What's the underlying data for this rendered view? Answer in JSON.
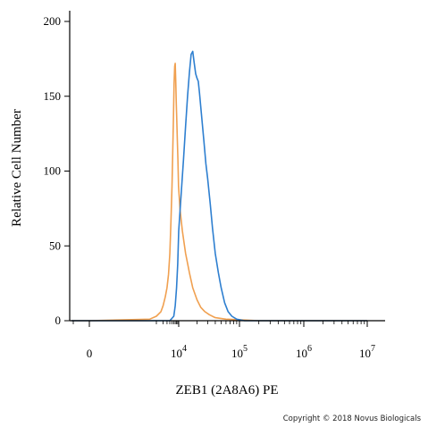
{
  "chart_data": {
    "type": "line",
    "title": "",
    "xlabel": "ZEB1 (2A8A6) PE",
    "ylabel": "Relative Cell Number",
    "xscale": "biexponential",
    "xlim": [
      -1000,
      10000000
    ],
    "ylim": [
      0,
      200
    ],
    "y_ticks": [
      {
        "value": 0,
        "label": "0"
      },
      {
        "value": 50,
        "label": "50"
      },
      {
        "value": 100,
        "label": "100"
      },
      {
        "value": 150,
        "label": "150"
      },
      {
        "value": 200,
        "label": "200"
      }
    ],
    "x_ticks": [
      {
        "value": 0,
        "base": "0",
        "exp": ""
      },
      {
        "value": 10000,
        "base": "10",
        "exp": "4"
      },
      {
        "value": 100000,
        "base": "10",
        "exp": "5"
      },
      {
        "value": 1000000,
        "base": "10",
        "exp": "6"
      },
      {
        "value": 10000000,
        "base": "10",
        "exp": "7"
      }
    ],
    "grid": false,
    "legend": "none",
    "series": [
      {
        "color": "#f0a050",
        "x": [
          -1000,
          0,
          500,
          1000,
          1600,
          2000,
          2500,
          3000,
          3500,
          4000,
          4500,
          5000,
          5400,
          5800,
          6200,
          6600,
          7000,
          7400,
          7800,
          8200,
          8700,
          9200,
          9800,
          10500,
          11500,
          13000,
          15000,
          17000,
          20000,
          23000,
          27000,
          32000,
          40000,
          60000,
          200000,
          10000000
        ],
        "y": [
          0,
          0,
          1,
          3,
          6,
          10,
          16,
          22,
          31,
          45,
          66,
          90,
          112,
          135,
          158,
          170,
          172,
          160,
          145,
          135,
          120,
          108,
          90,
          75,
          60,
          45,
          32,
          22,
          14,
          9,
          6,
          4,
          2,
          1,
          0,
          0
        ]
      },
      {
        "color": "#2e7fd0",
        "x": [
          -1000,
          2000,
          4000,
          6000,
          7000,
          8000,
          9000,
          10000,
          11000,
          12000,
          13000,
          14000,
          15000,
          16000,
          17000,
          18000,
          19000,
          20000,
          21000,
          22000,
          24000,
          26000,
          28000,
          30000,
          33000,
          36000,
          40000,
          45000,
          50000,
          57000,
          65000,
          75000,
          90000,
          120000,
          10000000
        ],
        "y": [
          0,
          0,
          0,
          3,
          10,
          22,
          38,
          60,
          85,
          108,
          130,
          150,
          166,
          178,
          180,
          172,
          165,
          162,
          160,
          152,
          135,
          120,
          105,
          95,
          78,
          62,
          45,
          32,
          22,
          12,
          6,
          3,
          1,
          0,
          0
        ]
      }
    ]
  },
  "copyright": "Copyright © 2018 Novus Biologicals"
}
